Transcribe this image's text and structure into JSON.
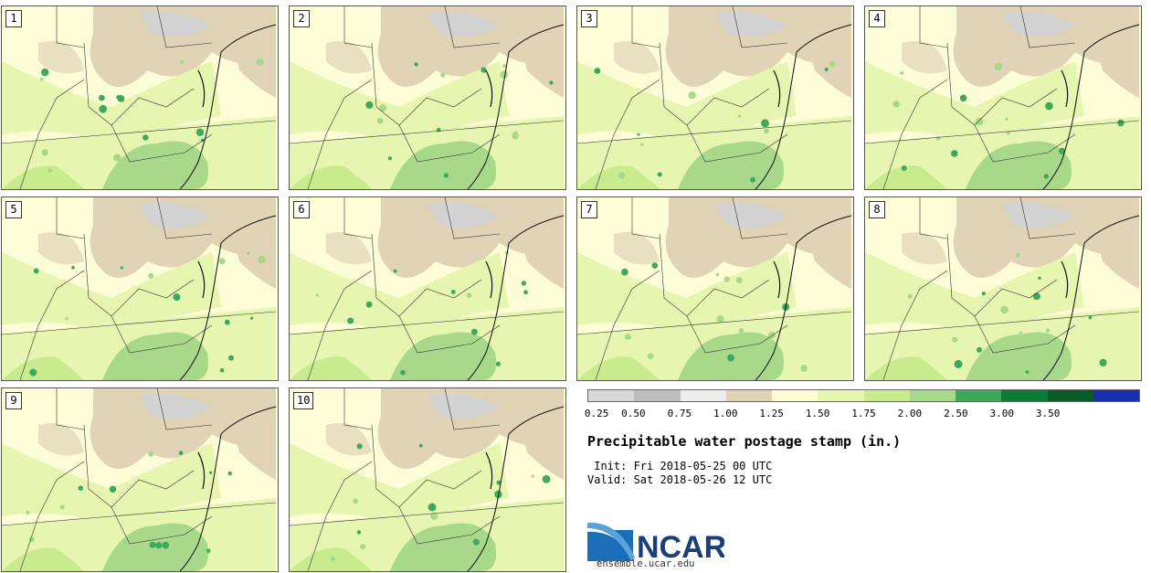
{
  "panels": [
    {
      "label": "1"
    },
    {
      "label": "2"
    },
    {
      "label": "3"
    },
    {
      "label": "4"
    },
    {
      "label": "5"
    },
    {
      "label": "6"
    },
    {
      "label": "7"
    },
    {
      "label": "8"
    },
    {
      "label": "9"
    },
    {
      "label": "10"
    }
  ],
  "colorbar": {
    "colors": [
      "#d8d8d8",
      "#bdbdbd",
      "#ececec",
      "#e0d3b6",
      "#fcfdd6",
      "#e6f5b0",
      "#c8eb8e",
      "#a8d98a",
      "#3ea85b",
      "#0d7a36",
      "#0a5a2a",
      "#1a2fb0"
    ],
    "ticks": [
      "0.25",
      "0.50",
      "0.75",
      "1.00",
      "1.25",
      "1.50",
      "1.75",
      "2.00",
      "2.50",
      "3.00",
      "3.50"
    ]
  },
  "title": "Precipitable water postage stamp (in.)",
  "init_line": " Init: Fri 2018-05-25 00 UTC",
  "valid_line": "Valid: Sat 2018-05-26 12 UTC",
  "logo": {
    "text": "NCAR",
    "url": "ensemble.ucar.edu"
  }
}
